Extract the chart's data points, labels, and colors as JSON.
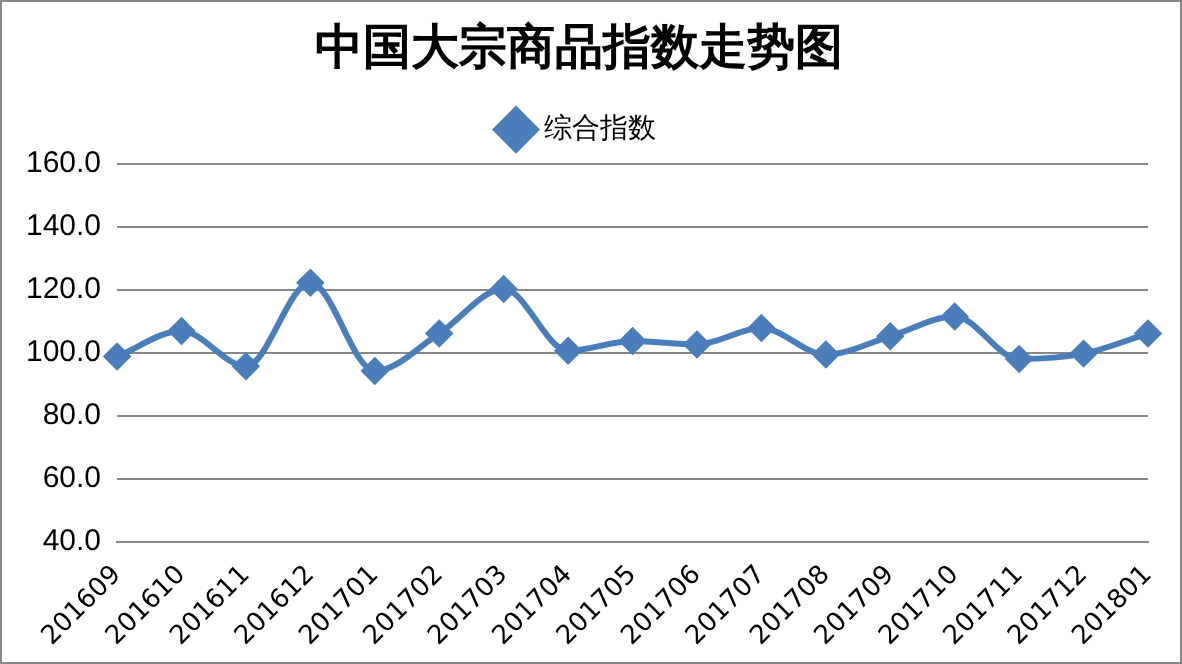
{
  "chart_data": {
    "type": "line",
    "title": "中国大宗商品指数走势图",
    "categories": [
      "201609",
      "201610",
      "201611",
      "201612",
      "201701",
      "201702",
      "201703",
      "201704",
      "201705",
      "201706",
      "201707",
      "201708",
      "201709",
      "201710",
      "201711",
      "201712",
      "201801"
    ],
    "series": [
      {
        "name": "综合指数",
        "color": "#4a7ebb",
        "values": [
          98.8,
          106.9,
          95.7,
          122.2,
          94.2,
          106.1,
          120.2,
          100.6,
          103.7,
          102.6,
          107.8,
          99.4,
          105.2,
          111.5,
          98.0,
          99.7,
          106.1
        ]
      }
    ],
    "ylim": [
      40,
      160
    ],
    "yticks": [
      {
        "value": 40,
        "label": "40.0"
      },
      {
        "value": 60,
        "label": "60.0"
      },
      {
        "value": 80,
        "label": "80.0"
      },
      {
        "value": 100,
        "label": "100.0"
      },
      {
        "value": 120,
        "label": "120.0"
      },
      {
        "value": 140,
        "label": "140.0"
      },
      {
        "value": 160,
        "label": "160.0"
      }
    ],
    "grid": "y",
    "legend": "top",
    "marker": "diamond",
    "line_style": "solid"
  }
}
